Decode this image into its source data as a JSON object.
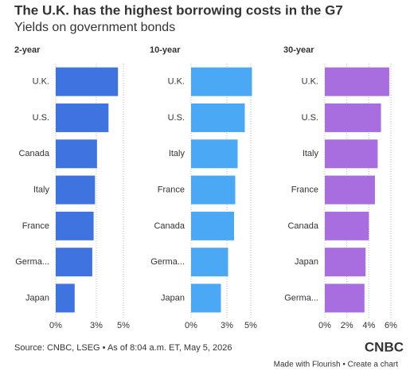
{
  "title": "The U.K. has the highest borrowing costs in the G7",
  "subtitle": "Yields on government bonds",
  "source": "Source: CNBC, LSEG • As of 8:04 a.m. ET, May 5, 2026",
  "logo": "CNBC",
  "footer": "Made with Flourish • Create a chart",
  "chart_data": [
    {
      "type": "bar",
      "title": "2-year",
      "color": "#3f74e0",
      "categories": [
        "U.K.",
        "U.S.",
        "Canada",
        "Italy",
        "France",
        "Germa...",
        "Japan"
      ],
      "values": [
        4.6,
        3.9,
        3.05,
        2.9,
        2.8,
        2.7,
        1.4
      ],
      "xlim": [
        0,
        5
      ],
      "xticks": [
        {
          "value": 0,
          "label": "0%"
        },
        {
          "value": 3,
          "label": "3%"
        },
        {
          "value": 5,
          "label": "5%"
        }
      ]
    },
    {
      "type": "bar",
      "title": "10-year",
      "color": "#4aa8f5",
      "categories": [
        "U.K.",
        "U.S.",
        "Italy",
        "France",
        "Canada",
        "Germa...",
        "Japan"
      ],
      "values": [
        5.1,
        4.5,
        3.9,
        3.7,
        3.6,
        3.1,
        2.5
      ],
      "xlim": [
        0,
        5
      ],
      "xticks": [
        {
          "value": 0,
          "label": "0%"
        },
        {
          "value": 3,
          "label": "3%"
        },
        {
          "value": 5,
          "label": "5%"
        }
      ]
    },
    {
      "type": "bar",
      "title": "30-year",
      "color": "#a86ee0",
      "categories": [
        "U.K.",
        "U.S.",
        "Italy",
        "France",
        "Canada",
        "Japan",
        "Germa..."
      ],
      "values": [
        5.85,
        5.1,
        4.8,
        4.55,
        4.0,
        3.7,
        3.6
      ],
      "xlim": [
        0,
        6
      ],
      "xticks": [
        {
          "value": 0,
          "label": "0%"
        },
        {
          "value": 2,
          "label": "2%"
        },
        {
          "value": 4,
          "label": "4%"
        },
        {
          "value": 6,
          "label": "6%"
        }
      ]
    }
  ]
}
